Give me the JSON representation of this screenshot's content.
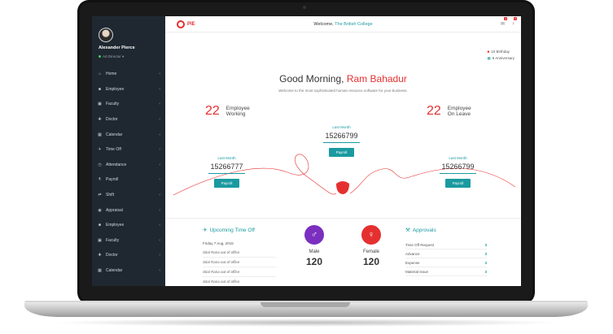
{
  "user": {
    "name": "Alexander Pierce",
    "role": "Art Director"
  },
  "sidebar": {
    "items": [
      {
        "label": "Home",
        "icon": "home-icon",
        "glyph": "⌂"
      },
      {
        "label": "Employee",
        "icon": "users-icon",
        "glyph": "☻"
      },
      {
        "label": "Faculty",
        "icon": "briefcase-icon",
        "glyph": "▣"
      },
      {
        "label": "Doctor",
        "icon": "doctor-icon",
        "glyph": "✚"
      },
      {
        "label": "Calendar",
        "icon": "calendar-icon",
        "glyph": "▦"
      },
      {
        "label": "Time Off",
        "icon": "plane-icon",
        "glyph": "✈"
      },
      {
        "label": "Attendance",
        "icon": "clock-icon",
        "glyph": "◷"
      },
      {
        "label": "Payroll",
        "icon": "rupee-icon",
        "glyph": "₹"
      },
      {
        "label": "Shift",
        "icon": "shuffle-icon",
        "glyph": "⇄"
      },
      {
        "label": "Appraisal",
        "icon": "appraisal-icon",
        "glyph": "◉"
      },
      {
        "label": "Employee",
        "icon": "users-icon",
        "glyph": "☻"
      },
      {
        "label": "Faculty",
        "icon": "briefcase-icon",
        "glyph": "▣"
      },
      {
        "label": "Doctor",
        "icon": "doctor-icon",
        "glyph": "✚"
      },
      {
        "label": "Calendar",
        "icon": "calendar-icon",
        "glyph": "▦"
      }
    ]
  },
  "header": {
    "logo": "PIE",
    "welcome_prefix": "Welcome,",
    "college": "The British College",
    "mail_badge": "4",
    "bell_badge": "5"
  },
  "events": {
    "birthday": "10 Birthday",
    "anniversary": "5 Anniversary"
  },
  "greeting": {
    "prefix": "Good Morning,",
    "name": "Ram Bahadur",
    "tagline": "Welcome to the most sophisticated human resource software for your business."
  },
  "stats": {
    "working": {
      "count": "22",
      "label1": "Employee",
      "label2": "Working"
    },
    "leave": {
      "count": "22",
      "label1": "Employee",
      "label2": "On Leave"
    }
  },
  "payroll": {
    "left": {
      "label": "Last Month",
      "value": "15266777",
      "button": "Payroll"
    },
    "center": {
      "label": "Last Month",
      "value": "15266799",
      "button": "Payroll"
    },
    "right": {
      "label": "Last Month",
      "value": "15266799",
      "button": "Payroll"
    }
  },
  "timeoff": {
    "title": "Upcoming Time Off",
    "date": "Friday 7 Aug, 2015",
    "items": [
      "Sital Rana out of office",
      "Sital Rana out of office",
      "Sital Rana out of office",
      "Sital Rana out of office"
    ]
  },
  "gender": {
    "male": {
      "label": "Male",
      "value": "120",
      "color": "#7b2fbf"
    },
    "female": {
      "label": "Female",
      "value": "120",
      "color": "#e53030"
    }
  },
  "approvals": {
    "title": "Approvals",
    "rows": [
      {
        "label": "Time Off Request",
        "count": "3"
      },
      {
        "label": "Advance",
        "count": "3"
      },
      {
        "label": "Expense",
        "count": "3"
      },
      {
        "label": "Material Issue",
        "count": "3"
      }
    ]
  },
  "colors": {
    "accent": "#1a9aa0",
    "brand": "#e53030",
    "sidebar": "#1f2830"
  }
}
